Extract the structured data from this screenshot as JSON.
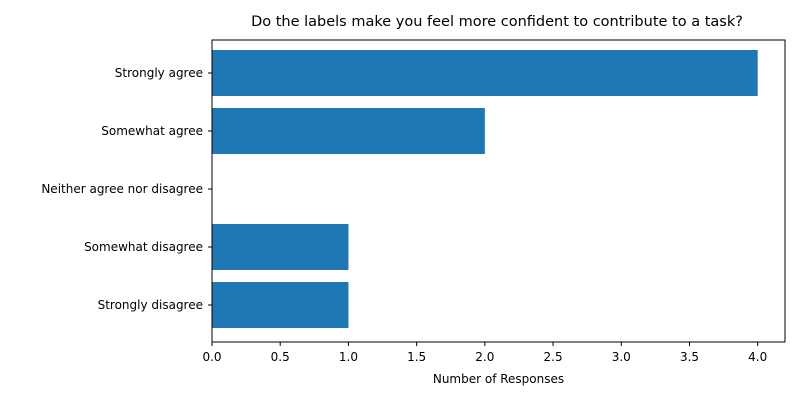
{
  "chart_data": {
    "type": "bar",
    "orientation": "horizontal",
    "title": "Do the labels make you feel more confident to contribute to a task?",
    "xlabel": "Number of Responses",
    "ylabel": "",
    "categories": [
      "Strongly agree",
      "Somewhat agree",
      "Neither agree nor disagree",
      "Somewhat disagree",
      "Strongly disagree"
    ],
    "values": [
      4,
      2,
      0,
      1,
      1
    ],
    "xlim": [
      0,
      4.2
    ],
    "xticks": [
      0.0,
      0.5,
      1.0,
      1.5,
      2.0,
      2.5,
      3.0,
      3.5,
      4.0
    ],
    "xtick_labels": [
      "0.0",
      "0.5",
      "1.0",
      "1.5",
      "2.0",
      "2.5",
      "3.0",
      "3.5",
      "4.0"
    ],
    "bar_color": "#1f77b4",
    "grid": false
  }
}
